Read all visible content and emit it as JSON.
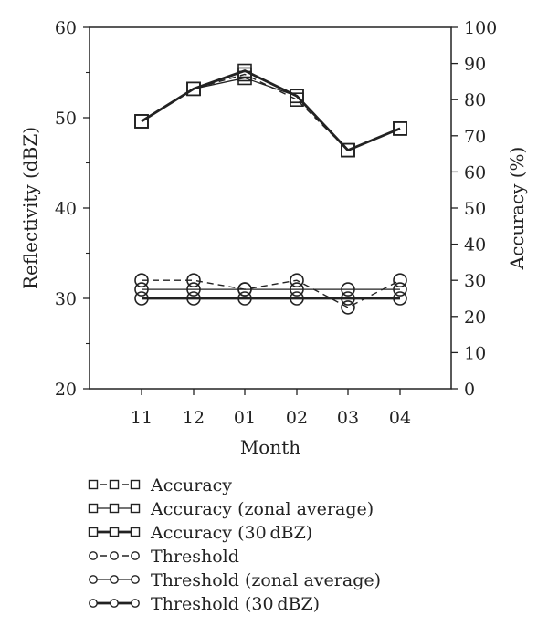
{
  "chart_data": {
    "type": "line",
    "categories": [
      "11",
      "12",
      "01",
      "02",
      "03",
      "04"
    ],
    "xlabel": "Month",
    "ylabel_left": "Reflectivity (dBZ)",
    "ylabel_right": "Accuracy (%)",
    "ylim_left": [
      20,
      60
    ],
    "ylim_right": [
      0,
      100
    ],
    "yticks_left": [
      20,
      30,
      40,
      50,
      60
    ],
    "yticks_right": [
      0,
      10,
      20,
      30,
      40,
      50,
      60,
      70,
      80,
      90,
      100
    ],
    "grid": false,
    "legend_position": "bottom",
    "series": [
      {
        "name": "Accuracy",
        "axis": "right",
        "marker": "square",
        "line": "dashed",
        "values": [
          74,
          83,
          87,
          80,
          66,
          72
        ]
      },
      {
        "name": "Accuracy (zonal average)",
        "axis": "right",
        "marker": "square",
        "line": "thin",
        "values": [
          74,
          83,
          86,
          81,
          66,
          72
        ]
      },
      {
        "name": "Accuracy (30 dBZ)",
        "axis": "right",
        "marker": "square",
        "line": "thick",
        "values": [
          74,
          83,
          88,
          81,
          66,
          72
        ]
      },
      {
        "name": "Threshold",
        "axis": "left",
        "marker": "circle",
        "line": "dashed",
        "values": [
          32,
          32,
          31,
          32,
          29,
          32
        ]
      },
      {
        "name": "Threshold (zonal average)",
        "axis": "left",
        "marker": "circle",
        "line": "thin",
        "values": [
          31,
          31,
          31,
          31,
          31,
          31
        ]
      },
      {
        "name": "Threshold (30 dBZ)",
        "axis": "left",
        "marker": "circle",
        "line": "thick",
        "values": [
          30,
          30,
          30,
          30,
          30,
          30
        ]
      }
    ]
  }
}
